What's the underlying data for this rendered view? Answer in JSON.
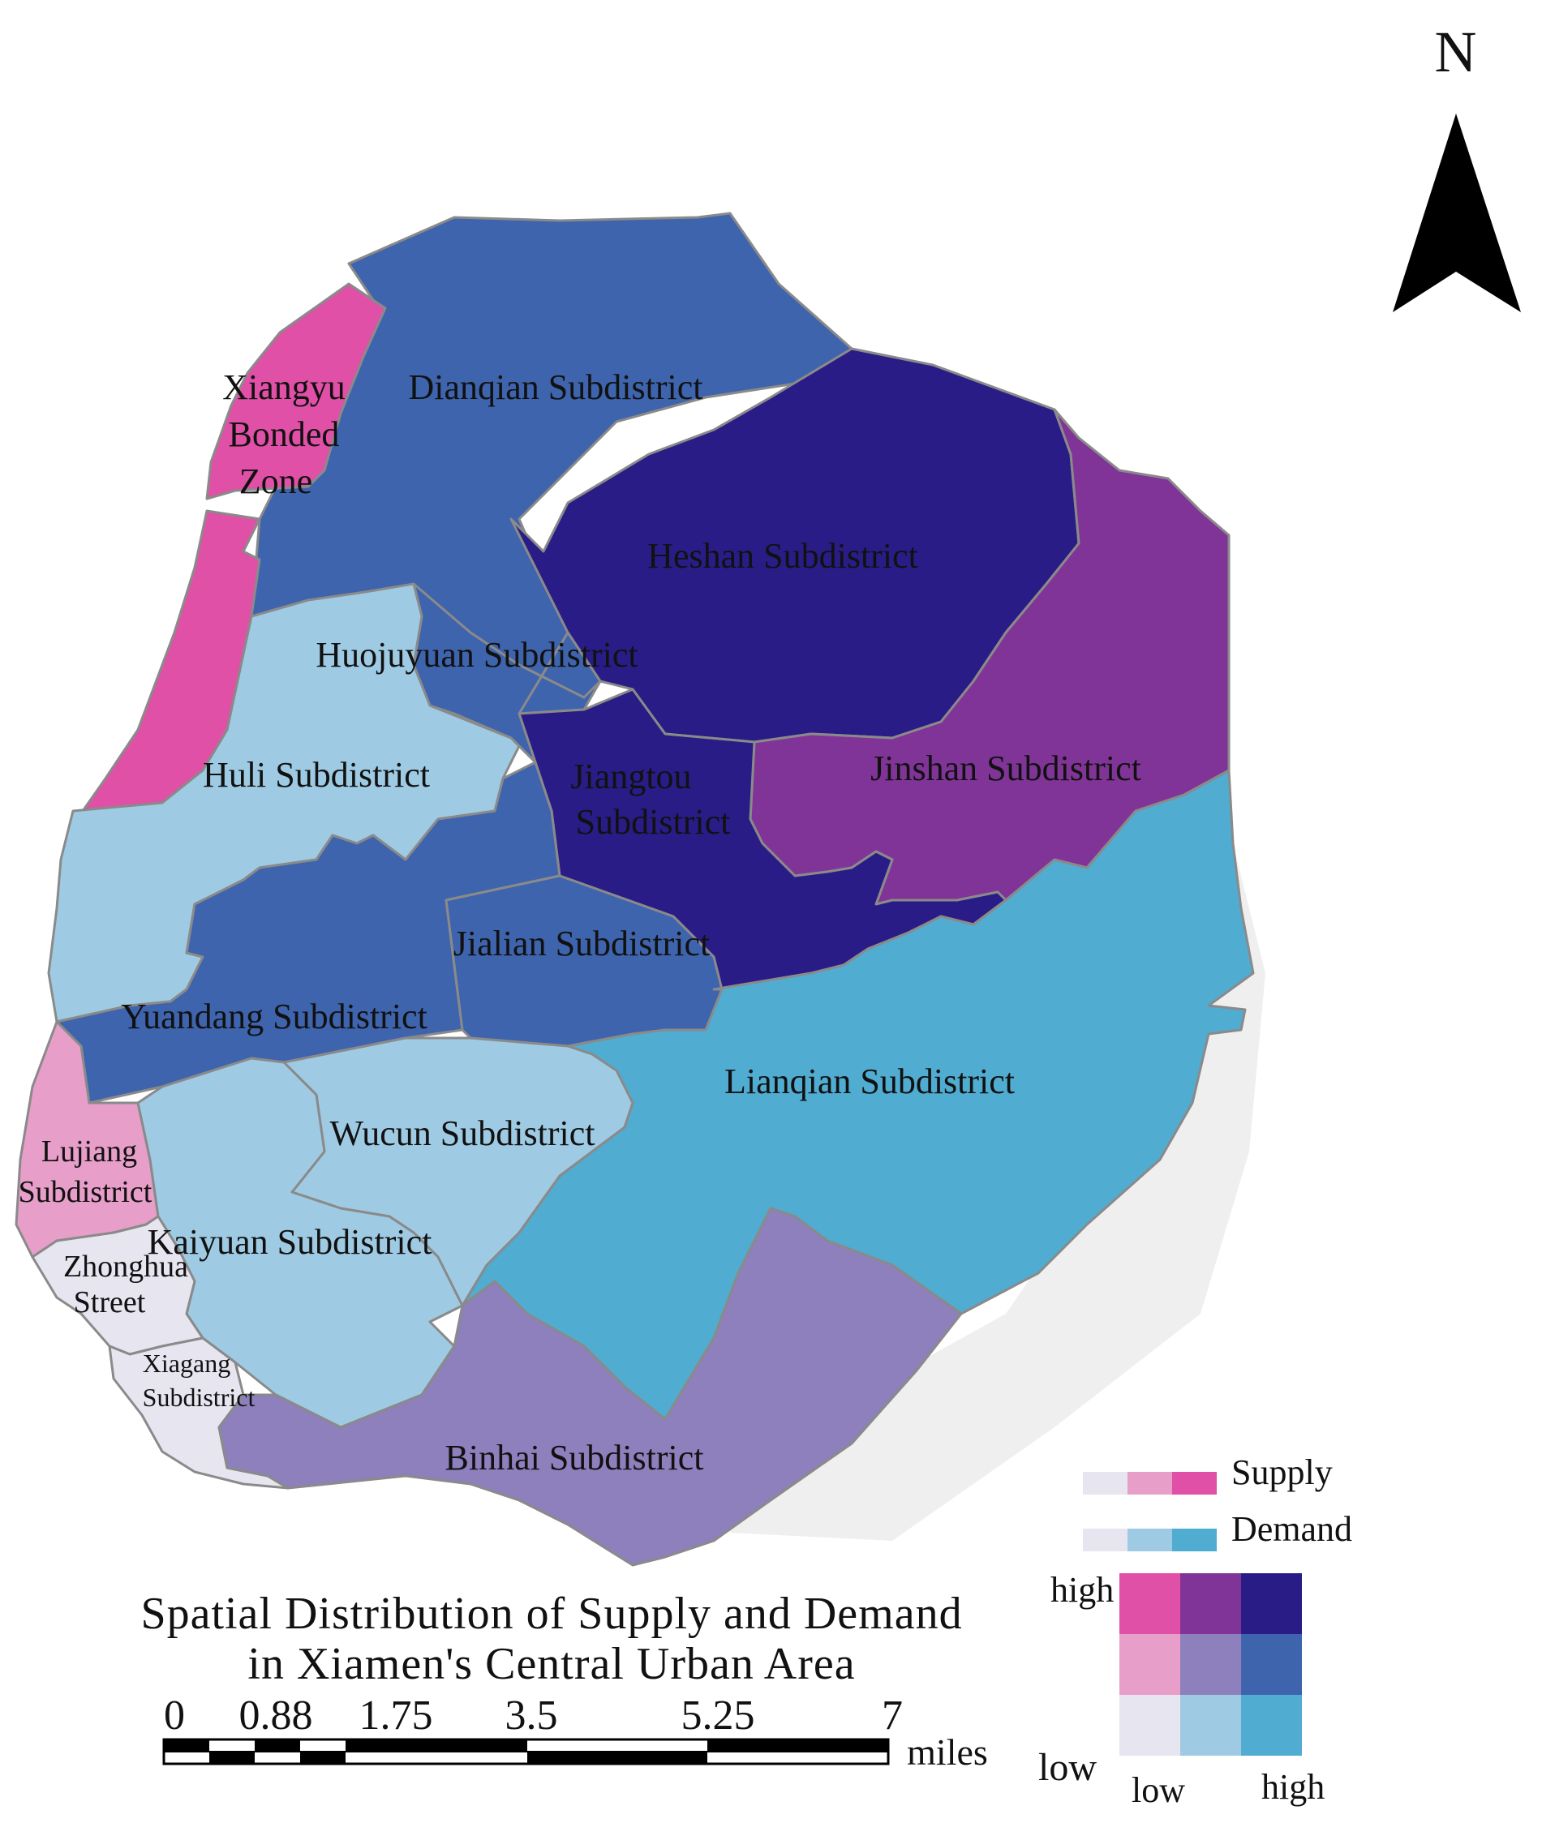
{
  "map": {
    "title_line1": "Spatial Distribution of Supply and Demand",
    "title_line2": "in Xiamen's Central Urban Area",
    "north_label": "N"
  },
  "regions": {
    "dianqian": {
      "name": "Dianqian Subdistrict",
      "color": "#3e64ad"
    },
    "xiangyu": {
      "name_lines": [
        "Xiangyu",
        "Bonded",
        "Zone"
      ],
      "color": "#e050a6"
    },
    "heshan": {
      "name": "Heshan Subdistrict",
      "color": "#2a1c86"
    },
    "huojuyuan": {
      "name": "Huojuyuan Subdistrict",
      "color": "#3e64ad"
    },
    "jinshan": {
      "name": "Jinshan Subdistrict",
      "color": "#813497"
    },
    "jiangtou": {
      "name_lines": [
        "Jiangtou",
        "Subdistrict"
      ],
      "color": "#2a1c86"
    },
    "huli": {
      "name": "Huli Subdistrict",
      "color": "#9ecbe3"
    },
    "jialian": {
      "name": "Jialian Subdistrict",
      "color": "#3e64ad"
    },
    "yuandang": {
      "name": "Yuandang Subdistrict",
      "color": "#3e64ad"
    },
    "lianqian": {
      "name": "Lianqian Subdistrict",
      "color": "#50acd1"
    },
    "wucun": {
      "name": "Wucun Subdistrict",
      "color": "#9ecbe3"
    },
    "lujiang": {
      "name_lines": [
        "Lujiang",
        "Subdistrict"
      ],
      "color": "#e79ec9"
    },
    "kaiyuan": {
      "name": "Kaiyuan Subdistrict",
      "color": "#9ecbe3"
    },
    "zhonghua": {
      "name_lines": [
        "Zhonghua",
        "Street"
      ],
      "color": "#e7e5ef"
    },
    "xiagang": {
      "name_lines": [
        "Xiagang",
        "Subdistrict"
      ],
      "color": "#e7e5ef"
    },
    "binhai": {
      "name": "Binhai Subdistrict",
      "color": "#8e7fbd"
    }
  },
  "scale_bar": {
    "ticks": [
      "0",
      "0.88",
      "1.75",
      "3.5",
      "5.25",
      "7"
    ],
    "unit": "miles"
  },
  "legend": {
    "supply_label": "Supply",
    "demand_label": "Demand",
    "supply_colors": [
      "#e7e5ef",
      "#e79ec9",
      "#e050a6"
    ],
    "demand_colors": [
      "#e7e5ef",
      "#9ecbe3",
      "#50acd1"
    ],
    "grid_rows_top_to_bottom": [
      [
        "#e050a6",
        "#813497",
        "#2a1c86"
      ],
      [
        "#e79ec9",
        "#8e7fbd",
        "#3e64ad"
      ],
      [
        "#e7e5ef",
        "#9ecbe3",
        "#50acd1"
      ]
    ],
    "y_high": "high",
    "y_low": "low",
    "x_low": "low",
    "x_high": "high"
  }
}
